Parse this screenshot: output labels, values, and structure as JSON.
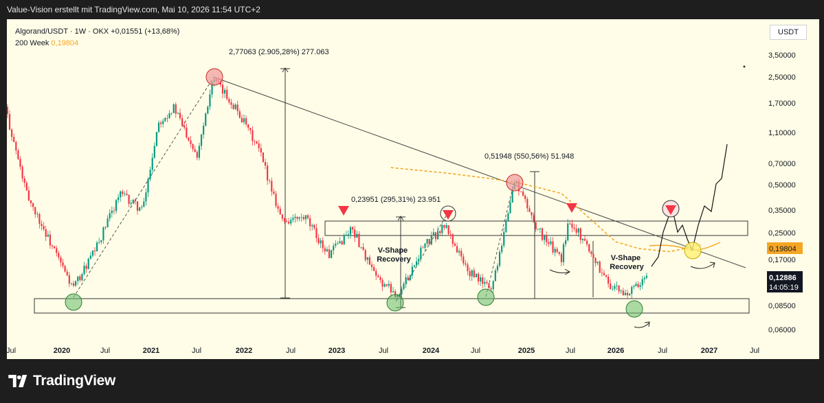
{
  "header": {
    "caption": "Value-Vision erstellt mit TradingView.com, Mai 10, 2026 11:54 UTC+2"
  },
  "legend": {
    "symbol_line": "Algorand/USDT · 1W · OKX  +0,01551 (+13,68%)",
    "ma_label": "200 Week",
    "ma_value": "0,19804"
  },
  "price_axis": {
    "currency": "USDT",
    "ticks": [
      "3,50000",
      "2,50000",
      "1,70000",
      "1,10000",
      "0,70000",
      "0,50000",
      "0,35000",
      "0,25000",
      "0,17000",
      "0,12000",
      "0,08500",
      "0,06000"
    ],
    "ma_badge": "0,19804",
    "price_badge": "0,12886",
    "countdown": "14:05:19"
  },
  "time_axis": {
    "labels": [
      "Jul",
      "2020",
      "Jul",
      "2021",
      "Jul",
      "2022",
      "Jul",
      "2023",
      "Jul",
      "2024",
      "Jul",
      "2025",
      "Jul",
      "2026",
      "Jul",
      "2027",
      "Jul"
    ]
  },
  "colors": {
    "background": "#fffde7",
    "candle_up": "#089981",
    "candle_down": "#f23645",
    "ma_line": "#f5a623",
    "red_marker": "#f23645",
    "green_circle": "#66bb6a",
    "yellow_circle": "#fff176",
    "price_badge": "#131722",
    "ma_badge": "#f5a623"
  },
  "chart_data": {
    "type": "line",
    "title": "Algorand/USDT · 1W · OKX",
    "scale": "log",
    "ylim": [
      0.055,
      4.6
    ],
    "xlim": [
      "2019-06",
      "2027-07"
    ],
    "series": [
      {
        "name": "Algorand/USDT",
        "x": [
          "2019-06",
          "2019-09",
          "2019-12",
          "2020-03",
          "2020-06",
          "2020-09",
          "2020-12",
          "2021-02",
          "2021-04",
          "2021-07",
          "2021-09",
          "2021-12",
          "2022-03",
          "2022-06",
          "2022-09",
          "2022-12",
          "2023-03",
          "2023-06",
          "2023-09",
          "2023-12",
          "2024-03",
          "2024-06",
          "2024-09",
          "2024-12",
          "2025-03",
          "2025-06",
          "2025-07",
          "2025-09",
          "2025-12",
          "2026-02",
          "2026-04",
          "2026-05"
        ],
        "values": [
          1.8,
          0.45,
          0.22,
          0.11,
          0.2,
          0.45,
          0.35,
          1.3,
          1.6,
          0.8,
          2.45,
          1.6,
          0.85,
          0.3,
          0.31,
          0.18,
          0.27,
          0.13,
          0.1,
          0.2,
          0.28,
          0.14,
          0.11,
          0.55,
          0.26,
          0.17,
          0.31,
          0.22,
          0.12,
          0.1,
          0.114,
          0.12886
        ]
      },
      {
        "name": "200 Week",
        "x": [
          "2023-08",
          "2024-03",
          "2024-09",
          "2025-01",
          "2025-06",
          "2025-10",
          "2026-01",
          "2026-04",
          "2026-08",
          "2026-12"
        ],
        "values": [
          0.66,
          0.61,
          0.56,
          0.52,
          0.45,
          0.3,
          0.22,
          0.199,
          0.19,
          0.21
        ]
      }
    ],
    "annotations": [
      {
        "text": "2,77063 (2.905,28%) 277.063"
      },
      {
        "text": "0,51948 (550,56%) 51.948"
      },
      {
        "text": "0,23951 (295,31%) 23.951"
      },
      {
        "text": "V-Shape Recovery"
      },
      {
        "text": "V-Shape Recovery"
      }
    ],
    "zones": [
      {
        "name": "support",
        "range": [
          0.078,
          0.095
        ]
      },
      {
        "name": "resistance",
        "range": [
          0.23,
          0.285
        ]
      }
    ]
  }
}
